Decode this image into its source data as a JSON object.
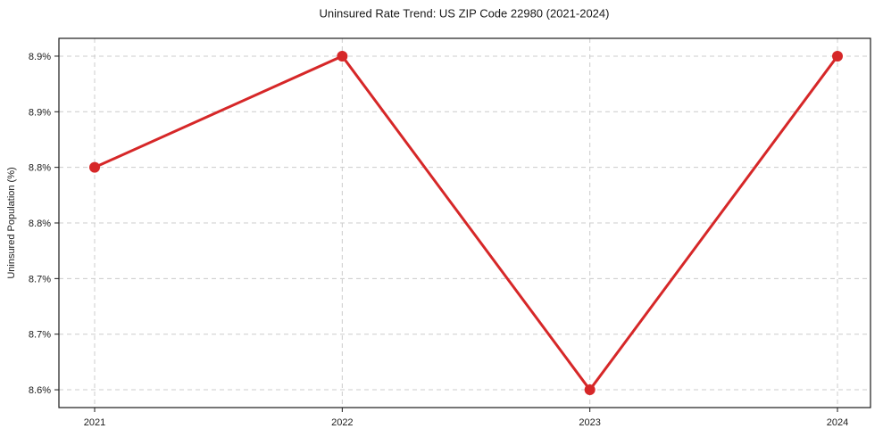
{
  "chart_data": {
    "type": "line",
    "title": "Uninsured Rate Trend: US ZIP Code 22980 (2021-2024)",
    "xlabel": "",
    "ylabel": "Uninsured Population (%)",
    "x": [
      "2021",
      "2022",
      "2023",
      "2024"
    ],
    "values": [
      8.8,
      8.9,
      8.6,
      8.9
    ],
    "yticks": [
      {
        "value": 8.9,
        "label": "8.9%"
      },
      {
        "value": 8.85,
        "label": "8.9%"
      },
      {
        "value": 8.8,
        "label": "8.8%"
      },
      {
        "value": 8.75,
        "label": "8.8%"
      },
      {
        "value": 8.7,
        "label": "8.7%"
      },
      {
        "value": 8.65,
        "label": "8.7%"
      },
      {
        "value": 8.6,
        "label": "8.6%"
      }
    ],
    "ylim": [
      8.584,
      8.916
    ],
    "grid": true,
    "legend": "none",
    "marker": "circle",
    "colors": {
      "line": "#d62728",
      "marker": "#d62728",
      "grid": "#cccccc",
      "spine": "#1a1a1a",
      "text": "#1a1a1a",
      "background": "#ffffff"
    }
  }
}
